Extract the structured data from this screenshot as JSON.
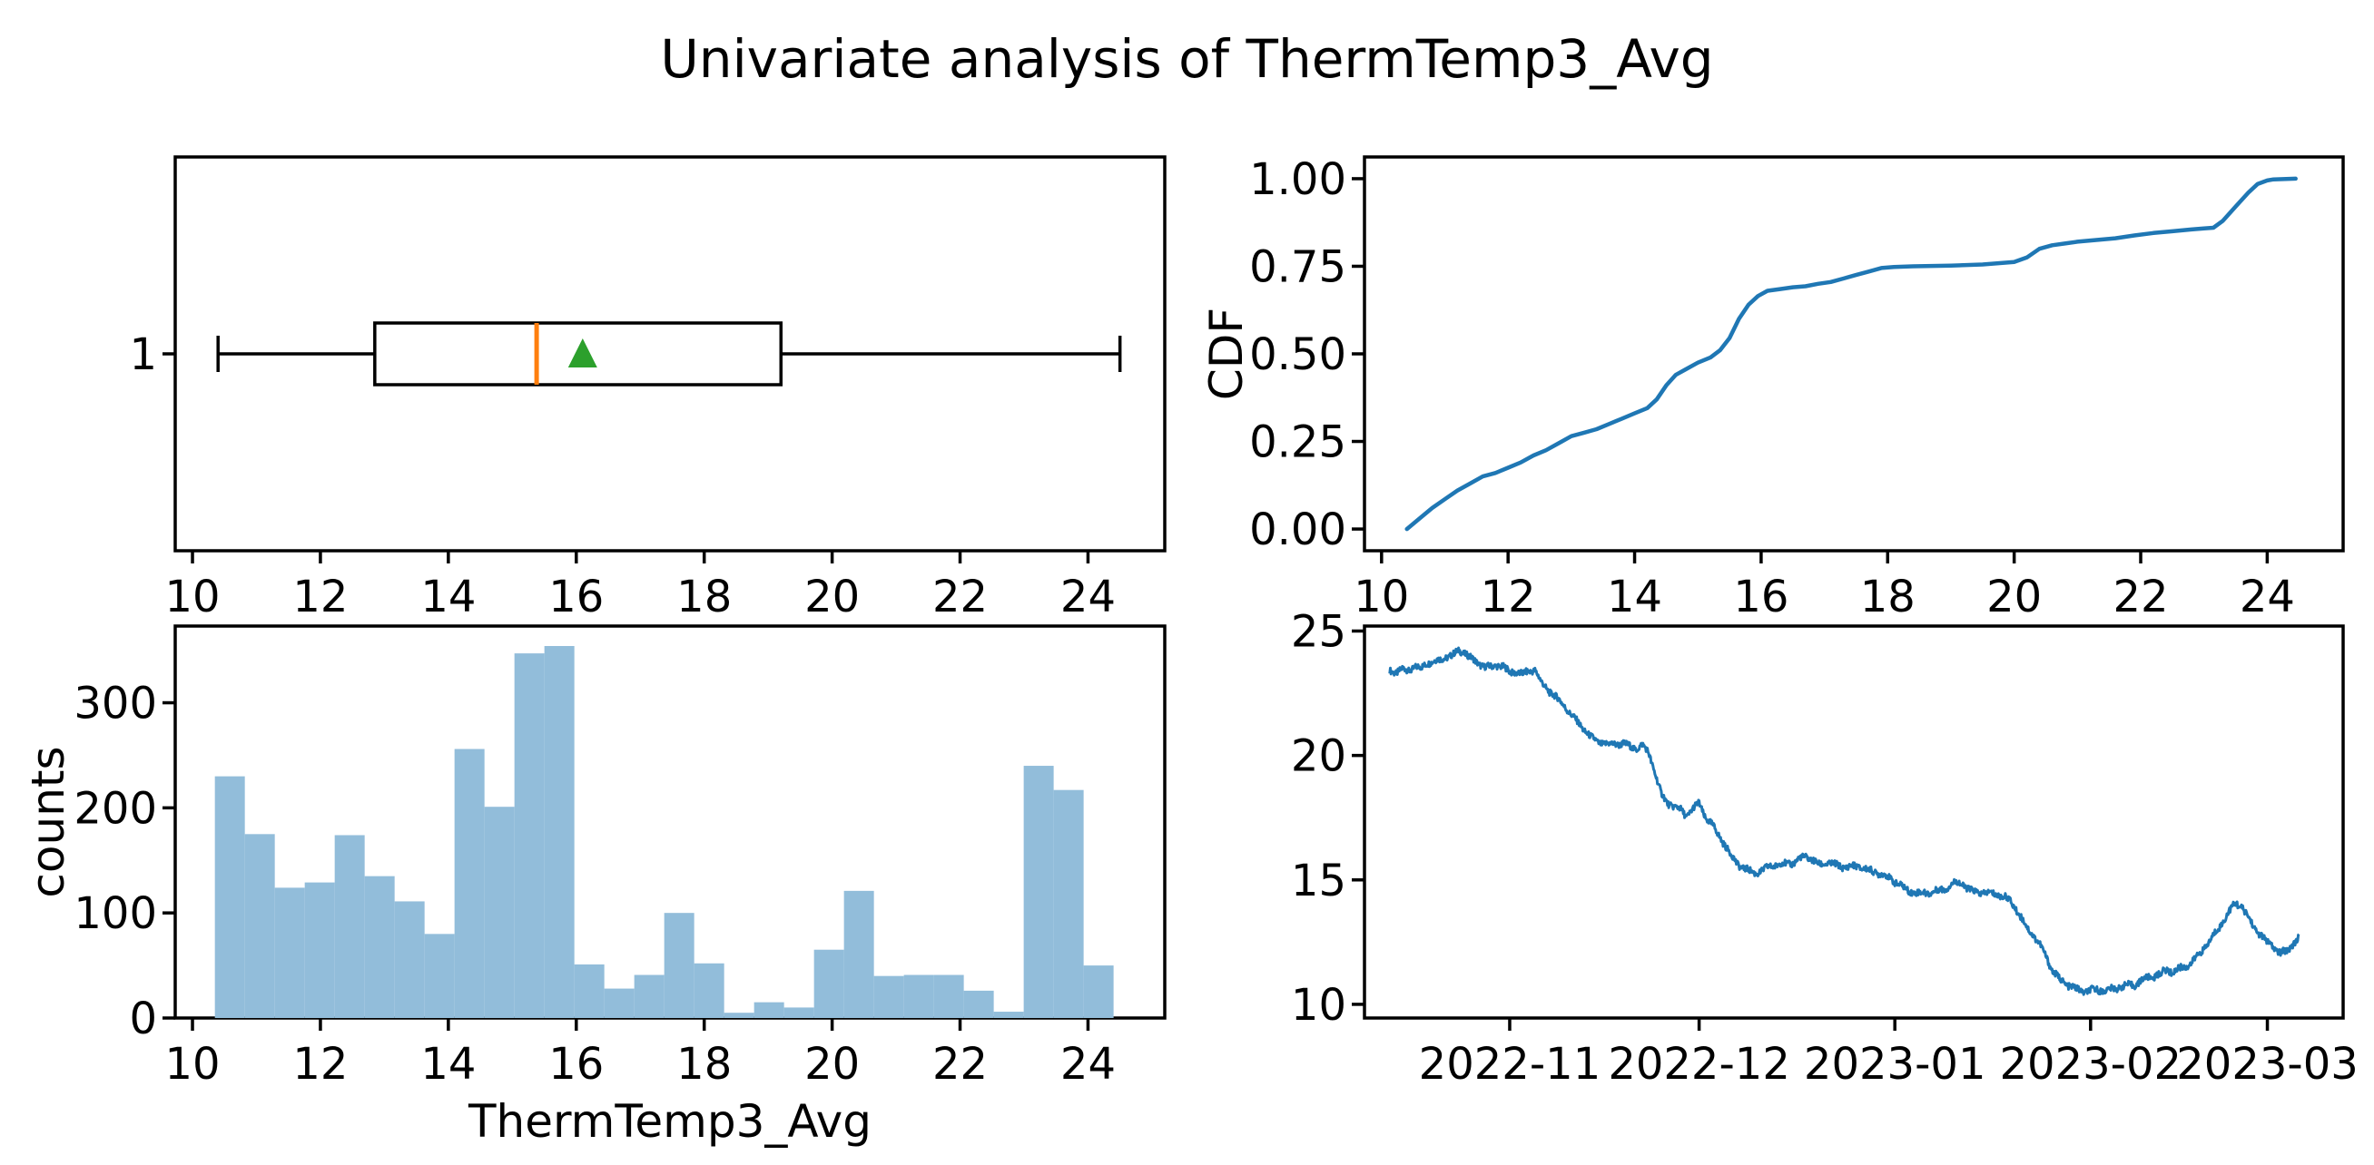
{
  "title": "Univariate analysis of ThermTemp3_Avg",
  "colors": {
    "line_blue": "#1f77b4",
    "hist_fill": "#92bdda",
    "median_orange": "#ff7f0e",
    "mean_green": "#2ca02c",
    "axis_black": "#000000"
  },
  "chart_data": [
    {
      "id": "boxplot",
      "type": "boxplot",
      "orientation": "horizontal",
      "xlim": [
        9.73,
        25.2
      ],
      "ylim": [
        0,
        2
      ],
      "x_ticks": [
        10,
        12,
        14,
        16,
        18,
        20,
        22,
        24
      ],
      "x_tick_labels": [
        "10",
        "12",
        "14",
        "16",
        "18",
        "20",
        "22",
        "24"
      ],
      "y_ticks": [
        1
      ],
      "y_tick_labels": [
        "1"
      ],
      "stats": {
        "whisker_low": 10.4,
        "q1": 12.85,
        "median": 15.38,
        "q3": 19.2,
        "whisker_high": 24.5,
        "mean": 16.1
      }
    },
    {
      "id": "cdf",
      "type": "line",
      "ylabel": "CDF",
      "xlim": [
        9.73,
        25.2
      ],
      "ylim": [
        -0.062,
        1.062
      ],
      "x_ticks": [
        10,
        12,
        14,
        16,
        18,
        20,
        22,
        24
      ],
      "x_tick_labels": [
        "10",
        "12",
        "14",
        "16",
        "18",
        "20",
        "22",
        "24"
      ],
      "y_ticks": [
        0.0,
        0.25,
        0.5,
        0.75,
        1.0
      ],
      "y_tick_labels": [
        "0.00",
        "0.25",
        "0.50",
        "0.75",
        "1.00"
      ],
      "points": [
        [
          10.4,
          0.0
        ],
        [
          10.6,
          0.03
        ],
        [
          10.8,
          0.06
        ],
        [
          11.0,
          0.085
        ],
        [
          11.2,
          0.11
        ],
        [
          11.4,
          0.13
        ],
        [
          11.6,
          0.15
        ],
        [
          11.8,
          0.16
        ],
        [
          12.0,
          0.175
        ],
        [
          12.2,
          0.19
        ],
        [
          12.4,
          0.21
        ],
        [
          12.6,
          0.225
        ],
        [
          12.8,
          0.245
        ],
        [
          13.0,
          0.265
        ],
        [
          13.2,
          0.275
        ],
        [
          13.4,
          0.285
        ],
        [
          13.6,
          0.3
        ],
        [
          13.8,
          0.315
        ],
        [
          14.0,
          0.33
        ],
        [
          14.2,
          0.345
        ],
        [
          14.35,
          0.37
        ],
        [
          14.5,
          0.41
        ],
        [
          14.65,
          0.44
        ],
        [
          14.8,
          0.455
        ],
        [
          15.0,
          0.475
        ],
        [
          15.2,
          0.49
        ],
        [
          15.35,
          0.51
        ],
        [
          15.5,
          0.545
        ],
        [
          15.65,
          0.6
        ],
        [
          15.8,
          0.64
        ],
        [
          15.95,
          0.665
        ],
        [
          16.1,
          0.68
        ],
        [
          16.3,
          0.685
        ],
        [
          16.5,
          0.69
        ],
        [
          16.7,
          0.693
        ],
        [
          16.9,
          0.7
        ],
        [
          17.1,
          0.705
        ],
        [
          17.3,
          0.715
        ],
        [
          17.5,
          0.725
        ],
        [
          17.7,
          0.735
        ],
        [
          17.9,
          0.745
        ],
        [
          18.1,
          0.748
        ],
        [
          18.4,
          0.75
        ],
        [
          19.0,
          0.752
        ],
        [
          19.5,
          0.755
        ],
        [
          20.0,
          0.762
        ],
        [
          20.2,
          0.775
        ],
        [
          20.4,
          0.8
        ],
        [
          20.6,
          0.81
        ],
        [
          20.8,
          0.815
        ],
        [
          21.0,
          0.82
        ],
        [
          21.3,
          0.825
        ],
        [
          21.6,
          0.83
        ],
        [
          21.9,
          0.838
        ],
        [
          22.2,
          0.845
        ],
        [
          22.5,
          0.85
        ],
        [
          22.8,
          0.855
        ],
        [
          23.0,
          0.858
        ],
        [
          23.15,
          0.86
        ],
        [
          23.3,
          0.88
        ],
        [
          23.5,
          0.92
        ],
        [
          23.7,
          0.96
        ],
        [
          23.85,
          0.985
        ],
        [
          24.0,
          0.995
        ],
        [
          24.1,
          0.998
        ],
        [
          24.45,
          1.0
        ]
      ]
    },
    {
      "id": "histogram",
      "type": "bar",
      "xlabel": "ThermTemp3_Avg",
      "ylabel": "counts",
      "xlim": [
        9.73,
        25.2
      ],
      "ylim": [
        0,
        373
      ],
      "x_ticks": [
        10,
        12,
        14,
        16,
        18,
        20,
        22,
        24
      ],
      "x_tick_labels": [
        "10",
        "12",
        "14",
        "16",
        "18",
        "20",
        "22",
        "24"
      ],
      "y_ticks": [
        0,
        100,
        200,
        300
      ],
      "y_tick_labels": [
        "0",
        "100",
        "200",
        "300"
      ],
      "bin_start": 10.35,
      "bin_width": 0.46833,
      "counts": [
        230,
        175,
        124,
        129,
        174,
        135,
        111,
        80,
        256,
        201,
        347,
        354,
        51,
        28,
        41,
        100,
        52,
        5,
        15,
        10,
        65,
        121,
        40,
        41,
        41,
        26,
        6,
        240,
        217,
        50
      ]
    },
    {
      "id": "timeseries",
      "type": "line",
      "xlim": [
        0,
        155
      ],
      "ylim": [
        9.45,
        25.2
      ],
      "x_ticks": [
        23,
        53,
        84,
        115,
        143
      ],
      "x_tick_labels": [
        "2022-11",
        "2022-12",
        "2023-01",
        "2023-02",
        "2023-03"
      ],
      "y_ticks": [
        10,
        15,
        20,
        25
      ],
      "y_tick_labels": [
        "10",
        "15",
        "20",
        "25"
      ],
      "noise_amplitude": 0.13,
      "keypoints": [
        [
          4,
          23.4
        ],
        [
          5,
          23.35
        ],
        [
          6,
          23.5
        ],
        [
          7,
          23.45
        ],
        [
          8,
          23.6
        ],
        [
          9,
          23.5
        ],
        [
          10,
          23.7
        ],
        [
          11,
          23.75
        ],
        [
          12,
          23.8
        ],
        [
          13,
          23.95
        ],
        [
          14,
          24.05
        ],
        [
          15,
          24.25
        ],
        [
          16,
          24.15
        ],
        [
          17,
          23.9
        ],
        [
          18,
          23.7
        ],
        [
          19,
          23.55
        ],
        [
          20,
          23.5
        ],
        [
          21,
          23.6
        ],
        [
          22,
          23.55
        ],
        [
          23,
          23.35
        ],
        [
          24,
          23.4
        ],
        [
          25,
          23.3
        ],
        [
          26,
          23.4
        ],
        [
          27,
          23.45
        ],
        [
          28,
          22.9
        ],
        [
          29,
          22.6
        ],
        [
          30,
          22.4
        ],
        [
          31,
          22.15
        ],
        [
          32,
          21.9
        ],
        [
          33,
          21.6
        ],
        [
          34,
          21.3
        ],
        [
          35,
          21.0
        ],
        [
          36,
          20.7
        ],
        [
          37,
          20.5
        ],
        [
          38,
          20.45
        ],
        [
          39,
          20.4
        ],
        [
          40,
          20.45
        ],
        [
          41,
          20.5
        ],
        [
          42,
          20.4
        ],
        [
          43,
          20.3
        ],
        [
          44,
          20.45
        ],
        [
          45,
          20.1
        ],
        [
          46,
          19.3
        ],
        [
          47,
          18.4
        ],
        [
          48,
          18.05
        ],
        [
          49,
          17.95
        ],
        [
          50,
          17.85
        ],
        [
          51,
          17.6
        ],
        [
          52,
          17.9
        ],
        [
          53,
          18.1
        ],
        [
          54,
          17.5
        ],
        [
          55,
          17.2
        ],
        [
          56,
          16.8
        ],
        [
          57,
          16.4
        ],
        [
          58,
          16.0
        ],
        [
          59,
          15.7
        ],
        [
          60,
          15.5
        ],
        [
          61,
          15.4
        ],
        [
          62,
          15.3
        ],
        [
          63,
          15.35
        ],
        [
          64,
          15.5
        ],
        [
          65,
          15.55
        ],
        [
          66,
          15.6
        ],
        [
          67,
          15.65
        ],
        [
          68,
          15.7
        ],
        [
          69,
          15.9
        ],
        [
          70,
          16.0
        ],
        [
          71,
          15.8
        ],
        [
          72,
          15.6
        ],
        [
          73,
          15.65
        ],
        [
          74,
          15.6
        ],
        [
          75,
          15.55
        ],
        [
          76,
          15.5
        ],
        [
          77,
          15.55
        ],
        [
          78,
          15.6
        ],
        [
          79,
          15.5
        ],
        [
          80,
          15.4
        ],
        [
          81,
          15.3
        ],
        [
          82,
          15.2
        ],
        [
          83,
          15.05
        ],
        [
          84,
          14.9
        ],
        [
          85,
          14.75
        ],
        [
          86,
          14.6
        ],
        [
          87,
          14.55
        ],
        [
          88,
          14.5
        ],
        [
          89,
          14.5
        ],
        [
          90,
          14.5
        ],
        [
          91,
          14.55
        ],
        [
          92,
          14.6
        ],
        [
          93,
          14.8
        ],
        [
          94,
          14.9
        ],
        [
          95,
          14.8
        ],
        [
          96,
          14.6
        ],
        [
          97,
          14.55
        ],
        [
          98,
          14.5
        ],
        [
          99,
          14.45
        ],
        [
          100,
          14.4
        ],
        [
          101,
          14.3
        ],
        [
          102,
          14.2
        ],
        [
          103,
          13.9
        ],
        [
          104,
          13.5
        ],
        [
          105,
          13.1
        ],
        [
          106,
          12.8
        ],
        [
          107,
          12.4
        ],
        [
          108,
          11.9
        ],
        [
          109,
          11.3
        ],
        [
          110,
          11.0
        ],
        [
          111,
          10.8
        ],
        [
          112,
          10.7
        ],
        [
          113,
          10.6
        ],
        [
          114,
          10.55
        ],
        [
          115,
          10.6
        ],
        [
          116,
          10.6
        ],
        [
          117,
          10.55
        ],
        [
          118,
          10.55
        ],
        [
          119,
          10.6
        ],
        [
          120,
          10.7
        ],
        [
          121,
          10.75
        ],
        [
          122,
          10.8
        ],
        [
          123,
          11.0
        ],
        [
          124,
          11.1
        ],
        [
          125,
          11.15
        ],
        [
          126,
          11.2
        ],
        [
          127,
          11.35
        ],
        [
          128,
          11.25
        ],
        [
          129,
          11.4
        ],
        [
          130,
          11.5
        ],
        [
          131,
          11.7
        ],
        [
          132,
          12.0
        ],
        [
          133,
          12.3
        ],
        [
          134,
          12.6
        ],
        [
          135,
          12.95
        ],
        [
          136,
          13.3
        ],
        [
          137,
          13.7
        ],
        [
          138,
          14.05
        ],
        [
          139,
          13.9
        ],
        [
          140,
          13.5
        ],
        [
          141,
          13.1
        ],
        [
          142,
          12.8
        ],
        [
          143,
          12.5
        ],
        [
          144,
          12.3
        ],
        [
          145,
          12.0
        ],
        [
          146,
          12.1
        ],
        [
          147,
          12.4
        ],
        [
          148,
          12.65
        ]
      ]
    }
  ]
}
